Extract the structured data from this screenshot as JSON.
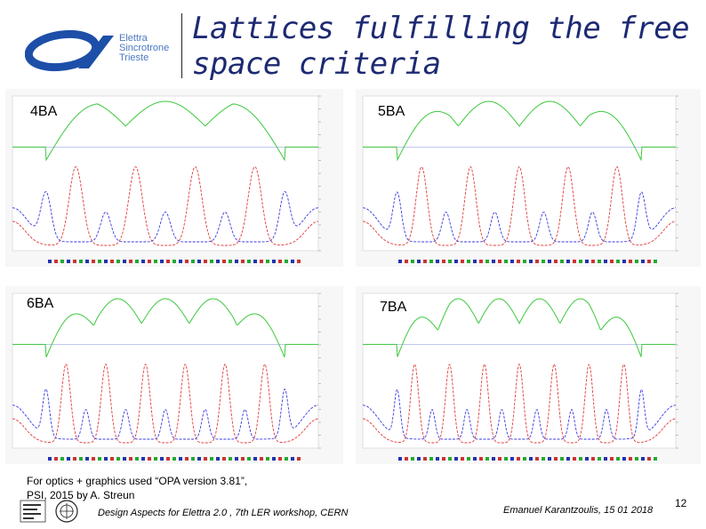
{
  "header": {
    "logo_lines": [
      "Elettra",
      "Sincrotrone",
      "Trieste"
    ],
    "title": "Lattices fulfilling the free space criteria"
  },
  "panels": [
    {
      "id": "4ba",
      "label": "4BA"
    },
    {
      "id": "5ba",
      "label": "5BA"
    },
    {
      "id": "6ba",
      "label": "6BA"
    },
    {
      "id": "7ba",
      "label": "7BA"
    }
  ],
  "footnote": {
    "line1": "For  optics + graphics used  “OPA version 3.81”,",
    "line2": "PSI, 2015 by A. Streun"
  },
  "footer": {
    "event": "Design Aspects for Elettra 2.0 , 7th LER workshop, CERN",
    "author_date": "Emanuel Karantzoulis, 15  01 2018",
    "page_number": "12"
  },
  "colors": {
    "title": "#1d2a72",
    "beta_x": "#e23a3a",
    "beta_y": "#3a3ae0",
    "dispersion": "#3cc83c",
    "logo": "#1d4fa8"
  }
}
